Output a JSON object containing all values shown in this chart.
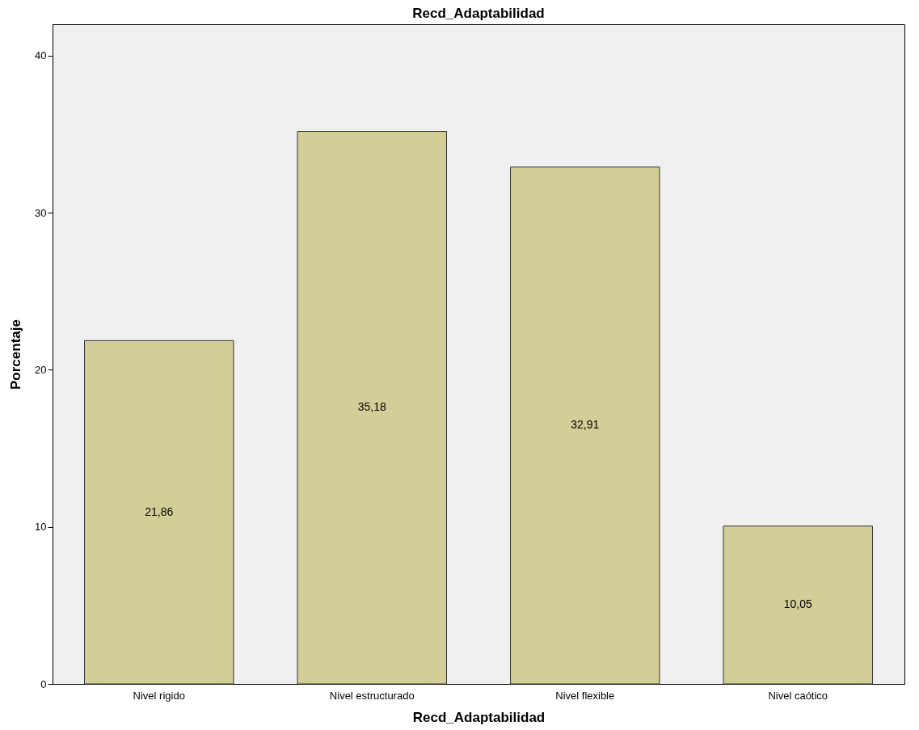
{
  "chart_data": {
    "type": "bar",
    "title": "Recd_Adaptabilidad",
    "xlabel": "Recd_Adaptabilidad",
    "ylabel": "Porcentaje",
    "categories": [
      "Nivel rigido",
      "Nivel estructurado",
      "Nivel flexible",
      "Nivel caótico"
    ],
    "values": [
      21.86,
      35.18,
      32.91,
      10.05
    ],
    "value_labels": [
      "21,86",
      "35,18",
      "32,91",
      "10,05"
    ],
    "color": "#d3ce97",
    "ylim": [
      0,
      42
    ],
    "yticks": [
      0,
      10,
      20,
      30,
      40
    ],
    "grid": false
  }
}
